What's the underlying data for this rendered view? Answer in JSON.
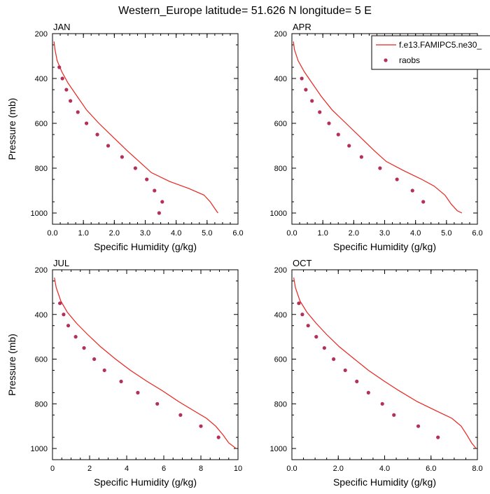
{
  "figure": {
    "title": "Western_Europe  latitude= 51.626 N longitude= 5 E",
    "legend": {
      "model_label": "f.e13.FAMIPC5.ne30_",
      "obs_label": "raobs",
      "model_color": "#e8251f",
      "obs_color": "#b3305a",
      "placement": "top-right, overlapping APR panel"
    }
  },
  "chart_data": [
    {
      "type": "line",
      "panel": "JAN",
      "title": "JAN",
      "xlabel": "Specific Humidity (g/kg)",
      "ylabel": "Pressure (mb)",
      "xlim": [
        0,
        6
      ],
      "ylim": [
        200,
        1050
      ],
      "y_inverted": true,
      "xticks": [
        0,
        1,
        2,
        3,
        4,
        5,
        6
      ],
      "xtick_labels": [
        "0.0",
        "1.0",
        "2.0",
        "3.0",
        "4.0",
        "5.0",
        "6.0"
      ],
      "yticks": [
        200,
        400,
        600,
        800,
        1000
      ],
      "ytick_labels": [
        "200",
        "400",
        "600",
        "800",
        "1000"
      ],
      "series": [
        {
          "name": "f.e13.FAMIPC5.ne30_",
          "kind": "line",
          "points": [
            [
              0.05,
              235
            ],
            [
              0.08,
              270
            ],
            [
              0.15,
              320
            ],
            [
              0.3,
              370
            ],
            [
              0.5,
              420
            ],
            [
              0.8,
              480
            ],
            [
              1.1,
              540
            ],
            [
              1.5,
              600
            ],
            [
              1.95,
              660
            ],
            [
              2.4,
              720
            ],
            [
              2.8,
              770
            ],
            [
              3.2,
              820
            ],
            [
              3.8,
              860
            ],
            [
              4.4,
              890
            ],
            [
              4.9,
              920
            ],
            [
              5.1,
              950
            ],
            [
              5.25,
              980
            ],
            [
              5.35,
              1000
            ]
          ]
        },
        {
          "name": "raobs",
          "kind": "scatter",
          "points": [
            [
              0.22,
              350
            ],
            [
              0.32,
              400
            ],
            [
              0.45,
              450
            ],
            [
              0.58,
              500
            ],
            [
              0.82,
              550
            ],
            [
              1.1,
              600
            ],
            [
              1.45,
              650
            ],
            [
              1.8,
              700
            ],
            [
              2.25,
              750
            ],
            [
              2.68,
              800
            ],
            [
              3.05,
              850
            ],
            [
              3.3,
              900
            ],
            [
              3.55,
              950
            ],
            [
              3.45,
              1000
            ]
          ]
        }
      ]
    },
    {
      "type": "line",
      "panel": "APR",
      "title": "APR",
      "xlabel": "Specific Humidity (g/kg)",
      "ylabel": "",
      "xlim": [
        0,
        6
      ],
      "ylim": [
        200,
        1050
      ],
      "y_inverted": true,
      "xticks": [
        0,
        1,
        2,
        3,
        4,
        5,
        6
      ],
      "xtick_labels": [
        "0.0",
        "1.0",
        "2.0",
        "3.0",
        "4.0",
        "5.0",
        "6.0"
      ],
      "yticks": [
        200,
        400,
        600,
        800,
        1000
      ],
      "ytick_labels": [
        "200",
        "400",
        "600",
        "800",
        "1000"
      ],
      "series": [
        {
          "name": "f.e13.FAMIPC5.ne30_",
          "kind": "line",
          "points": [
            [
              0.05,
              235
            ],
            [
              0.08,
              270
            ],
            [
              0.2,
              320
            ],
            [
              0.4,
              370
            ],
            [
              0.65,
              420
            ],
            [
              0.95,
              480
            ],
            [
              1.3,
              540
            ],
            [
              1.75,
              600
            ],
            [
              2.2,
              660
            ],
            [
              2.65,
              720
            ],
            [
              3.05,
              770
            ],
            [
              3.6,
              810
            ],
            [
              4.2,
              850
            ],
            [
              4.6,
              880
            ],
            [
              4.95,
              920
            ],
            [
              5.15,
              960
            ],
            [
              5.35,
              990
            ],
            [
              5.5,
              1000
            ]
          ]
        },
        {
          "name": "raobs",
          "kind": "scatter",
          "points": [
            [
              0.32,
              400
            ],
            [
              0.45,
              450
            ],
            [
              0.65,
              500
            ],
            [
              0.9,
              550
            ],
            [
              1.2,
              600
            ],
            [
              1.5,
              650
            ],
            [
              1.85,
              700
            ],
            [
              2.25,
              750
            ],
            [
              2.85,
              800
            ],
            [
              3.4,
              850
            ],
            [
              3.9,
              900
            ],
            [
              4.25,
              950
            ]
          ]
        }
      ]
    },
    {
      "type": "line",
      "panel": "JUL",
      "title": "JUL",
      "xlabel": "Specific Humidity (g/kg)",
      "ylabel": "Pressure (mb)",
      "xlim": [
        0,
        10
      ],
      "ylim": [
        200,
        1050
      ],
      "y_inverted": true,
      "xticks": [
        0,
        2,
        4,
        6,
        8,
        10
      ],
      "xtick_labels": [
        "0",
        "2",
        "4",
        "6",
        "8",
        "10"
      ],
      "yticks": [
        200,
        400,
        600,
        800,
        1000
      ],
      "ytick_labels": [
        "200",
        "400",
        "600",
        "800",
        "1000"
      ],
      "series": [
        {
          "name": "f.e13.FAMIPC5.ne30_",
          "kind": "line",
          "points": [
            [
              0.1,
              235
            ],
            [
              0.2,
              280
            ],
            [
              0.45,
              340
            ],
            [
              0.8,
              390
            ],
            [
              1.3,
              440
            ],
            [
              1.9,
              490
            ],
            [
              2.6,
              545
            ],
            [
              3.4,
              600
            ],
            [
              4.2,
              650
            ],
            [
              5.1,
              700
            ],
            [
              5.9,
              740
            ],
            [
              6.8,
              790
            ],
            [
              7.6,
              830
            ],
            [
              8.3,
              865
            ],
            [
              8.8,
              900
            ],
            [
              9.2,
              940
            ],
            [
              9.5,
              975
            ],
            [
              9.9,
              1000
            ]
          ]
        },
        {
          "name": "raobs",
          "kind": "scatter",
          "points": [
            [
              0.4,
              350
            ],
            [
              0.6,
              400
            ],
            [
              0.85,
              450
            ],
            [
              1.25,
              500
            ],
            [
              1.7,
              550
            ],
            [
              2.25,
              600
            ],
            [
              2.8,
              650
            ],
            [
              3.7,
              700
            ],
            [
              4.6,
              750
            ],
            [
              5.65,
              800
            ],
            [
              6.9,
              850
            ],
            [
              8.0,
              900
            ],
            [
              8.95,
              950
            ]
          ]
        }
      ]
    },
    {
      "type": "line",
      "panel": "OCT",
      "title": "OCT",
      "xlabel": "Specific Humidity (g/kg)",
      "ylabel": "",
      "xlim": [
        0,
        8
      ],
      "ylim": [
        200,
        1050
      ],
      "y_inverted": true,
      "xticks": [
        0,
        2,
        4,
        6,
        8
      ],
      "xtick_labels": [
        "0.0",
        "2.0",
        "4.0",
        "6.0",
        "8.0"
      ],
      "yticks": [
        200,
        400,
        600,
        800,
        1000
      ],
      "ytick_labels": [
        "200",
        "400",
        "600",
        "800",
        "1000"
      ],
      "series": [
        {
          "name": "f.e13.FAMIPC5.ne30_",
          "kind": "line",
          "points": [
            [
              0.08,
              235
            ],
            [
              0.15,
              280
            ],
            [
              0.35,
              340
            ],
            [
              0.65,
              390
            ],
            [
              1.05,
              440
            ],
            [
              1.5,
              490
            ],
            [
              2.05,
              545
            ],
            [
              2.7,
              600
            ],
            [
              3.3,
              650
            ],
            [
              4.0,
              700
            ],
            [
              4.6,
              740
            ],
            [
              5.4,
              790
            ],
            [
              6.2,
              830
            ],
            [
              6.9,
              865
            ],
            [
              7.3,
              900
            ],
            [
              7.55,
              940
            ],
            [
              7.75,
              975
            ],
            [
              7.95,
              1000
            ]
          ]
        },
        {
          "name": "raobs",
          "kind": "scatter",
          "points": [
            [
              0.3,
              350
            ],
            [
              0.45,
              400
            ],
            [
              0.7,
              450
            ],
            [
              1.05,
              500
            ],
            [
              1.4,
              550
            ],
            [
              1.8,
              600
            ],
            [
              2.3,
              650
            ],
            [
              2.8,
              700
            ],
            [
              3.3,
              750
            ],
            [
              3.9,
              800
            ],
            [
              4.4,
              850
            ],
            [
              5.45,
              900
            ],
            [
              6.3,
              950
            ]
          ]
        }
      ]
    }
  ]
}
